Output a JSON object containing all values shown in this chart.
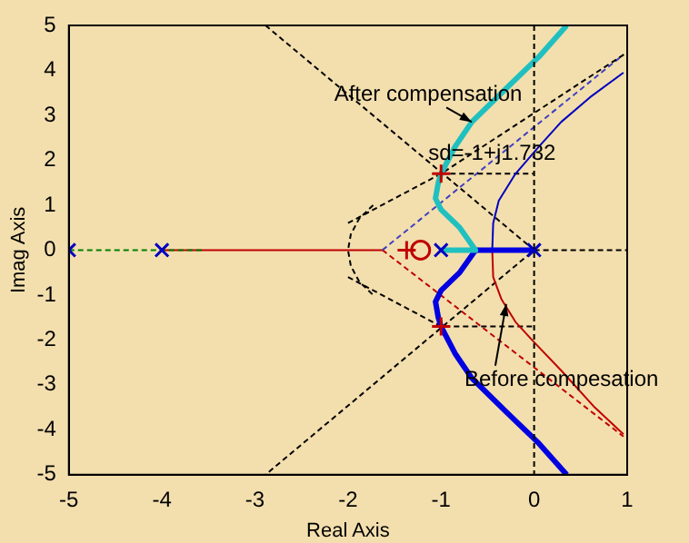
{
  "chart_data": {
    "type": "line",
    "xlabel": "Real Axis",
    "ylabel": "Imag Axis",
    "xlim": [
      -5,
      1
    ],
    "xticks": [
      -5,
      -4,
      -3,
      -2,
      -1,
      0,
      1
    ],
    "ylim": [
      -5,
      5
    ],
    "yticks": [
      -5,
      -4,
      -3,
      -2,
      -1,
      0,
      1,
      2,
      3,
      4,
      5
    ],
    "series": [
      {
        "type": "line",
        "color": "#20c0c0",
        "line_style": "solid",
        "marker": "none",
        "x": [
          -1,
          -0.63,
          -0.8,
          -1.0,
          -1.06,
          -1.03,
          -1,
          -0.85,
          -0.67,
          -0.3,
          0.05,
          0.35
        ],
        "values": [
          0,
          0,
          0.5,
          0.9,
          1.15,
          1.5,
          1.7,
          2.3,
          2.85,
          3.6,
          4.3,
          5
        ]
      },
      {
        "type": "line",
        "color": "#0000e0",
        "line_style": "solid",
        "marker": "none",
        "x": [
          0,
          -0.63,
          -0.8,
          -1.0,
          -1.06,
          -1.03,
          -1,
          -0.85,
          -0.67,
          -0.3,
          0.05,
          0.35
        ],
        "values": [
          0,
          0,
          -0.5,
          -0.9,
          -1.15,
          -1.5,
          -1.7,
          -2.3,
          -2.85,
          -3.6,
          -4.3,
          -5
        ]
      },
      {
        "type": "line",
        "color": "#0000c0",
        "line_style": "solid",
        "marker": "none",
        "x": [
          -0.45,
          -0.44,
          -0.38,
          -0.2,
          0.05,
          0.29,
          0.6,
          0.96
        ],
        "values": [
          0,
          0.6,
          1.1,
          1.7,
          2.3,
          2.85,
          3.4,
          3.95
        ]
      },
      {
        "type": "line",
        "color": "#c00000",
        "line_style": "solid",
        "marker": "none",
        "x": [
          -0.45,
          -0.44,
          -0.35,
          -0.2,
          0,
          0.3,
          0.65,
          0.96
        ],
        "values": [
          0,
          -0.6,
          -1.1,
          -1.6,
          -2.05,
          -2.7,
          -3.5,
          -4.1
        ]
      },
      {
        "type": "line",
        "color": "#008000",
        "line_style": "dashed",
        "marker": "none",
        "x": [
          -5,
          -3.55
        ],
        "values": [
          0,
          0
        ]
      },
      {
        "type": "line",
        "color": "#c00000",
        "line_style": "solid",
        "marker": "none",
        "x": [
          -4,
          -1.63
        ],
        "values": [
          0,
          0
        ]
      },
      {
        "type": "line",
        "color": "#000000",
        "line_style": "dashed",
        "marker": "none",
        "x": [
          -2.887,
          0,
          -2.887
        ],
        "values": [
          5,
          0,
          -5
        ]
      },
      {
        "type": "line",
        "color": "#000000",
        "line_style": "dashed",
        "marker": "none",
        "x": [
          -1.73,
          -1.88,
          -1.97,
          -2,
          -1.97,
          -1.88,
          -1.73
        ],
        "values": [
          1,
          0.7,
          0.35,
          0,
          -0.35,
          -0.7,
          -1
        ]
      },
      {
        "type": "line",
        "color": "#000000",
        "line_style": "dashed",
        "marker": "none",
        "x": [
          -2,
          -1,
          1
        ],
        "values": [
          0.6,
          1.7,
          4.4
        ]
      },
      {
        "type": "line",
        "color": "#000000",
        "line_style": "dashed",
        "marker": "none",
        "x": [
          -2,
          -1,
          0
        ],
        "values": [
          -0.6,
          -1.7,
          -1.7
        ]
      },
      {
        "type": "line",
        "color": "#000000",
        "line_style": "dashed",
        "marker": "none",
        "x": [
          -1,
          0
        ],
        "values": [
          1.7,
          1.7
        ]
      },
      {
        "type": "line",
        "color": "#000000",
        "line_style": "dashed",
        "marker": "none",
        "x": [
          0,
          1
        ],
        "values": [
          0,
          0
        ]
      },
      {
        "type": "line",
        "color": "#4040c0",
        "line_style": "dashed",
        "marker": "none",
        "x": [
          -1.63,
          0.96
        ],
        "values": [
          0,
          4.35
        ]
      },
      {
        "type": "line",
        "color": "#c00000",
        "line_style": "dashed",
        "marker": "none",
        "x": [
          -1.63,
          0.96
        ],
        "values": [
          0,
          -4.15
        ]
      },
      {
        "type": "scatter",
        "color": "#0000c0",
        "marker": "cross",
        "x": [
          -5,
          -4,
          -1,
          0
        ],
        "values": [
          0,
          0,
          0,
          0
        ]
      },
      {
        "type": "scatter",
        "color": "#c00000",
        "marker": "circle",
        "x": [
          -1.22
        ],
        "values": [
          0
        ]
      },
      {
        "type": "scatter",
        "color": "#c00000",
        "marker": "plus",
        "x": [
          -1.37,
          -1,
          -1
        ],
        "values": [
          0,
          1.7,
          -1.7
        ]
      }
    ],
    "ref_lines": [
      {
        "axis": "x",
        "value": 0,
        "color": "#000000",
        "line_style": "dashed"
      }
    ],
    "annotations": [
      {
        "text": "After compensation",
        "x": -0.67,
        "y": 2.85
      },
      {
        "text": "sd=-1+j1.732",
        "x": -1,
        "y": 1.7
      },
      {
        "text": "Before compesation",
        "x": -0.3,
        "y": -1.2
      }
    ]
  }
}
